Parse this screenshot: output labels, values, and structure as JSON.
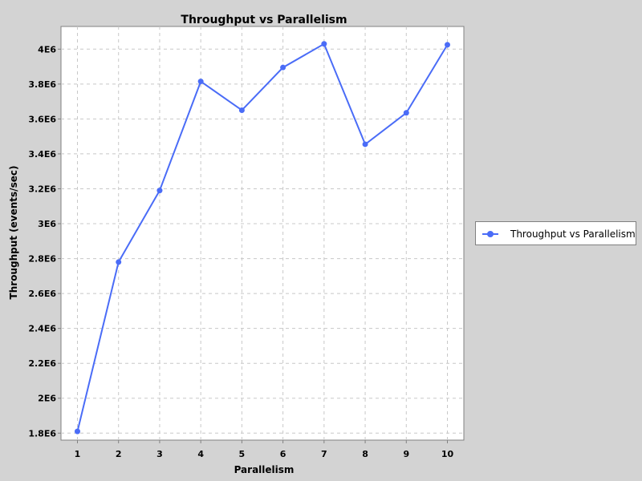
{
  "chart_data": {
    "type": "line",
    "title": "Throughput vs Parallelism",
    "xlabel": "Parallelism",
    "ylabel": "Throughput (events/sec)",
    "categories": [
      "1",
      "2",
      "3",
      "4",
      "5",
      "6",
      "7",
      "8",
      "9",
      "10"
    ],
    "series": [
      {
        "name": "Throughput vs Parallelism",
        "values": [
          1810000,
          2780000,
          3190000,
          3815000,
          3650000,
          3895000,
          4030000,
          3455000,
          3635000,
          4025000
        ]
      }
    ],
    "xlim": [
      0.6,
      10.4
    ],
    "ylim": [
      1760000,
      4130000
    ],
    "yticks": [
      {
        "value": 1800000,
        "label": "1.8E6"
      },
      {
        "value": 2000000,
        "label": "2E6"
      },
      {
        "value": 2200000,
        "label": "2.2E6"
      },
      {
        "value": 2400000,
        "label": "2.4E6"
      },
      {
        "value": 2600000,
        "label": "2.6E6"
      },
      {
        "value": 2800000,
        "label": "2.8E6"
      },
      {
        "value": 3000000,
        "label": "3E6"
      },
      {
        "value": 3200000,
        "label": "3.2E6"
      },
      {
        "value": 3400000,
        "label": "3.4E6"
      },
      {
        "value": 3600000,
        "label": "3.6E6"
      },
      {
        "value": 3800000,
        "label": "3.8E6"
      },
      {
        "value": 4000000,
        "label": "4E6"
      }
    ],
    "grid": true,
    "legend_position": "right",
    "series_color": "#4a6cf7"
  }
}
